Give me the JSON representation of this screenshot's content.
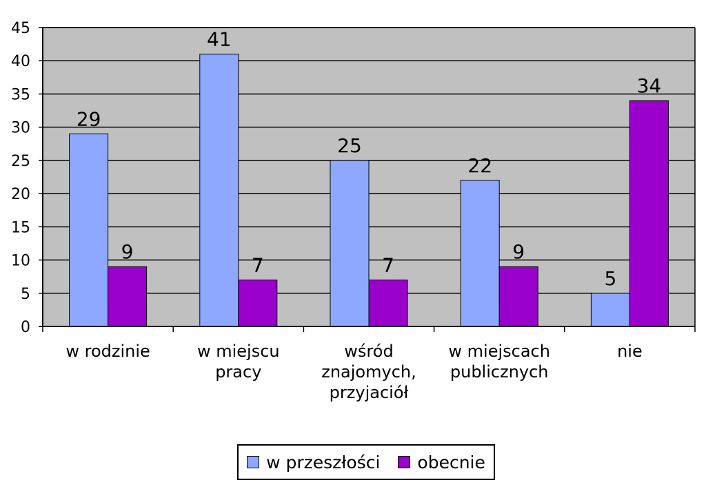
{
  "chart_data": {
    "type": "bar",
    "categories": [
      [
        "w rodzinie"
      ],
      [
        "w miejscu",
        "pracy"
      ],
      [
        "wśród",
        "znajomych,",
        "przyjaciół"
      ],
      [
        "w miejscach",
        "publicznych"
      ],
      [
        "nie"
      ]
    ],
    "series": [
      {
        "name": "w przeszłości",
        "color": "#8FA8FF",
        "values": [
          29,
          41,
          25,
          22,
          5
        ]
      },
      {
        "name": "obecnie",
        "color": "#9900CC",
        "values": [
          9,
          7,
          7,
          9,
          34
        ]
      }
    ],
    "ylim": [
      0,
      45
    ],
    "yticks": [
      0,
      5,
      10,
      15,
      20,
      25,
      30,
      35,
      40,
      45
    ],
    "grid": true,
    "plot_background": "#C0C0C0",
    "legend_position": "bottom",
    "show_data_labels": true
  }
}
